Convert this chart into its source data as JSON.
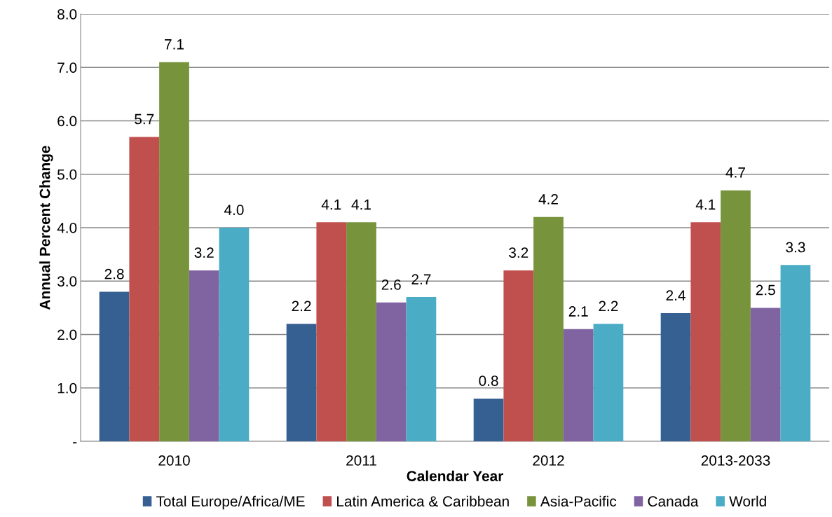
{
  "chart_data": {
    "type": "bar",
    "xlabel": "Calendar Year",
    "ylabel": "Annual Percent Change",
    "categories": [
      "2010",
      "2011",
      "2012",
      "2013-2033"
    ],
    "series": [
      {
        "name": "Total Europe/Africa/ME",
        "color": "#366092",
        "values": [
          2.8,
          2.2,
          0.8,
          2.4
        ],
        "value_labels": [
          "2.8",
          "2.2",
          "0.8",
          "2.4"
        ]
      },
      {
        "name": "Latin America & Caribbean",
        "color": "#c0504d",
        "values": [
          5.7,
          4.1,
          3.2,
          4.1
        ],
        "value_labels": [
          "5.7",
          "4.1",
          "3.2",
          "4.1"
        ]
      },
      {
        "name": "Asia-Pacific",
        "color": "#77933c",
        "values": [
          7.1,
          4.1,
          4.2,
          4.7
        ],
        "value_labels": [
          "7.1",
          "4.1",
          "4.2",
          "4.7"
        ]
      },
      {
        "name": "Canada",
        "color": "#8064a2",
        "values": [
          3.2,
          2.6,
          2.1,
          2.5
        ],
        "value_labels": [
          "3.2",
          "2.6",
          "2.1",
          "2.5"
        ]
      },
      {
        "name": "World",
        "color": "#4bacc6",
        "values": [
          4.0,
          2.7,
          2.2,
          3.3
        ],
        "value_labels": [
          "4.0",
          "2.7",
          "2.2",
          "3.3"
        ]
      }
    ],
    "ylim": [
      0,
      8
    ],
    "yticks": [
      {
        "value": 0,
        "label": "-"
      },
      {
        "value": 1,
        "label": "1.0"
      },
      {
        "value": 2,
        "label": "2.0"
      },
      {
        "value": 3,
        "label": "3.0"
      },
      {
        "value": 4,
        "label": "4.0"
      },
      {
        "value": 5,
        "label": "5.0"
      },
      {
        "value": 6,
        "label": "6.0"
      },
      {
        "value": 7,
        "label": "7.0"
      },
      {
        "value": 8,
        "label": "8.0"
      }
    ],
    "grid": "y",
    "legend": "bottom"
  }
}
